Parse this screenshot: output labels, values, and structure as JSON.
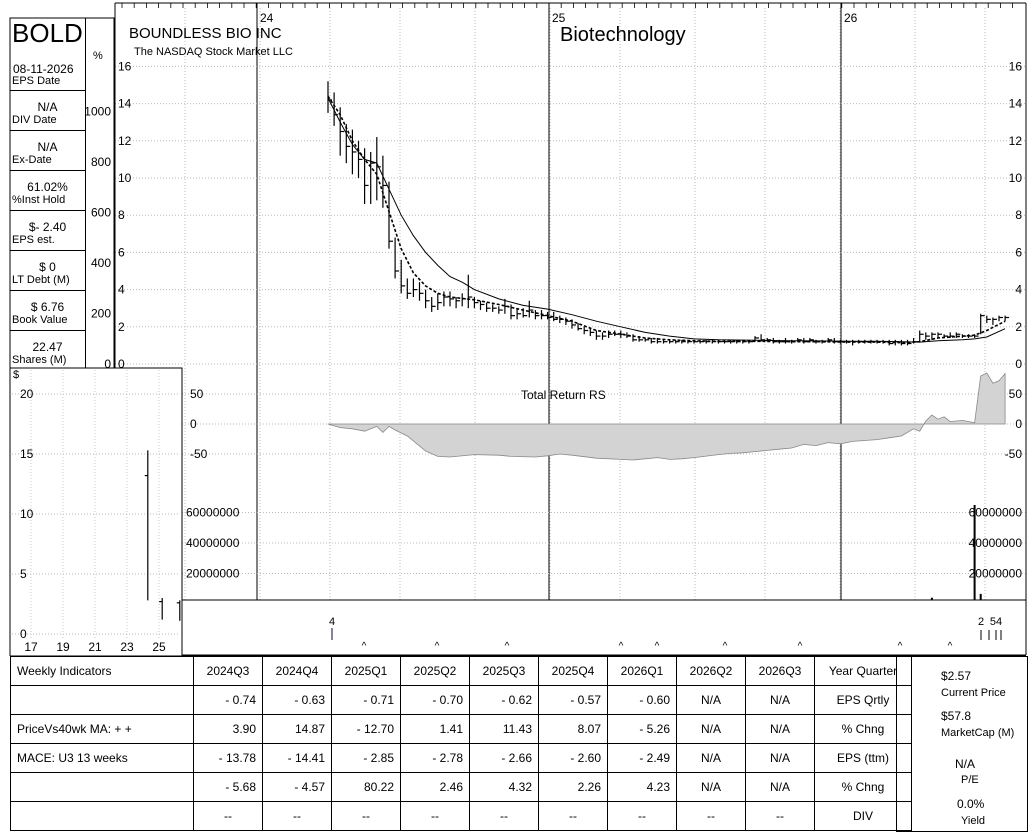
{
  "header": {
    "ticker": "BOLD",
    "company": "BOUNDLESS BIO INC",
    "exchange": "The NASDAQ Stock Market LLC",
    "industry": "Biotechnology",
    "pct_label": "%",
    "dollar_label": "$"
  },
  "sidebar": [
    {
      "value": "08-11-2026",
      "label": "EPS Date"
    },
    {
      "value": "N/A",
      "label": "DIV Date"
    },
    {
      "value": "N/A",
      "label": "Ex-Date"
    },
    {
      "value": "61.02%",
      "label": "%Inst Hold"
    },
    {
      "value": "$- 2.40",
      "label": "EPS est."
    },
    {
      "value": "$ 0",
      "label": "LT Debt (M)"
    },
    {
      "value": "$ 6.76",
      "label": "Book Value"
    },
    {
      "value": "22.47",
      "label": "Shares (M)"
    }
  ],
  "chart_data": [
    {
      "type": "line",
      "name": "weekly price",
      "x_labels": [
        "24",
        "25",
        "26"
      ],
      "y_ticks": [
        0,
        2,
        4,
        6,
        8,
        10,
        12,
        14,
        16
      ],
      "pct_ticks": [
        0,
        200,
        400,
        600,
        800,
        1000
      ],
      "ylim": [
        0,
        16
      ],
      "bars": [
        [
          0,
          15.2,
          13.5,
          14.2
        ],
        [
          1,
          14.6,
          12.8,
          13.4
        ],
        [
          2,
          13.8,
          11.2,
          12.5
        ],
        [
          3,
          12.9,
          10.8,
          11.7
        ],
        [
          4,
          12.6,
          10.2,
          11.4
        ],
        [
          5,
          12.0,
          10.0,
          11.0
        ],
        [
          6,
          11.6,
          8.6,
          9.6
        ],
        [
          7,
          11.4,
          8.6,
          10.8
        ],
        [
          8,
          12.2,
          8.8,
          10.6
        ],
        [
          9,
          11.2,
          8.4,
          9.6
        ],
        [
          10,
          9.8,
          6.2,
          6.6
        ],
        [
          11,
          6.8,
          4.6,
          5.0
        ],
        [
          12,
          5.6,
          3.8,
          4.2
        ],
        [
          13,
          4.6,
          3.5,
          3.8
        ],
        [
          14,
          4.6,
          3.6,
          4.0
        ],
        [
          15,
          4.4,
          3.4,
          3.8
        ],
        [
          16,
          4.0,
          3.0,
          3.4
        ],
        [
          17,
          3.6,
          2.8,
          3.1
        ],
        [
          18,
          3.8,
          2.9,
          3.3
        ],
        [
          19,
          3.9,
          3.1,
          3.6
        ],
        [
          20,
          3.9,
          3.1,
          3.5
        ],
        [
          21,
          3.6,
          3.0,
          3.4
        ],
        [
          22,
          3.8,
          3.1,
          3.5
        ],
        [
          23,
          4.8,
          3.0,
          3.6
        ],
        [
          24,
          3.6,
          3.0,
          3.3
        ],
        [
          25,
          3.4,
          2.9,
          3.2
        ],
        [
          26,
          3.3,
          2.8,
          3.0
        ],
        [
          27,
          3.2,
          2.8,
          3.0
        ],
        [
          28,
          3.1,
          2.7,
          2.9
        ],
        [
          29,
          3.5,
          2.7,
          3.1
        ],
        [
          30,
          3.2,
          2.4,
          2.6
        ],
        [
          31,
          3.0,
          2.4,
          2.7
        ],
        [
          32,
          3.0,
          2.5,
          2.6
        ],
        [
          33,
          3.4,
          2.5,
          2.9
        ],
        [
          34,
          2.9,
          2.4,
          2.6
        ],
        [
          35,
          2.9,
          2.4,
          2.6
        ],
        [
          36,
          2.8,
          2.4,
          2.5
        ],
        [
          37,
          2.8,
          2.3,
          2.4
        ],
        [
          38,
          2.6,
          2.2,
          2.4
        ],
        [
          39,
          2.5,
          2.1,
          2.3
        ],
        [
          40,
          2.4,
          1.9,
          2.1
        ],
        [
          41,
          2.2,
          1.8,
          1.9
        ],
        [
          42,
          2.0,
          1.6,
          1.8
        ],
        [
          43,
          1.9,
          1.5,
          1.7
        ],
        [
          44,
          1.8,
          1.3,
          1.5
        ],
        [
          45,
          1.7,
          1.3,
          1.5
        ],
        [
          46,
          1.8,
          1.4,
          1.6
        ],
        [
          47,
          1.8,
          1.5,
          1.6
        ],
        [
          48,
          1.8,
          1.4,
          1.6
        ],
        [
          49,
          1.7,
          1.4,
          1.5
        ],
        [
          50,
          1.6,
          1.2,
          1.3
        ],
        [
          51,
          1.5,
          1.2,
          1.3
        ],
        [
          52,
          1.4,
          1.2,
          1.3
        ],
        [
          53,
          1.4,
          1.1,
          1.2
        ],
        [
          54,
          1.4,
          1.1,
          1.2
        ],
        [
          55,
          1.3,
          1.1,
          1.2
        ],
        [
          56,
          1.3,
          1.1,
          1.2
        ],
        [
          57,
          1.3,
          1.1,
          1.2
        ],
        [
          58,
          1.3,
          1.1,
          1.2
        ],
        [
          59,
          1.3,
          1.1,
          1.2
        ],
        [
          60,
          1.3,
          1.1,
          1.2
        ],
        [
          61,
          1.3,
          1.1,
          1.2
        ],
        [
          62,
          1.3,
          1.1,
          1.2
        ],
        [
          63,
          1.3,
          1.1,
          1.2
        ],
        [
          64,
          1.3,
          1.1,
          1.2
        ],
        [
          65,
          1.3,
          1.1,
          1.2
        ],
        [
          66,
          1.3,
          1.1,
          1.2
        ],
        [
          67,
          1.3,
          1.1,
          1.2
        ],
        [
          68,
          1.3,
          1.1,
          1.2
        ],
        [
          69,
          1.3,
          1.1,
          1.2
        ],
        [
          70,
          1.5,
          1.2,
          1.4
        ],
        [
          71,
          1.6,
          1.2,
          1.3
        ],
        [
          72,
          1.4,
          1.2,
          1.3
        ],
        [
          73,
          1.4,
          1.1,
          1.2
        ],
        [
          74,
          1.3,
          1.1,
          1.2
        ],
        [
          75,
          1.4,
          1.1,
          1.2
        ],
        [
          76,
          1.3,
          1.1,
          1.2
        ],
        [
          77,
          1.4,
          1.2,
          1.3
        ],
        [
          78,
          1.4,
          1.1,
          1.2
        ],
        [
          79,
          1.4,
          1.2,
          1.3
        ],
        [
          80,
          1.3,
          1.1,
          1.2
        ],
        [
          81,
          1.3,
          1.1,
          1.2
        ],
        [
          82,
          1.4,
          1.2,
          1.3
        ],
        [
          83,
          1.4,
          1.1,
          1.2
        ],
        [
          84,
          1.3,
          1.1,
          1.2
        ],
        [
          85,
          1.3,
          1.1,
          1.2
        ],
        [
          86,
          1.3,
          1.0,
          1.2
        ],
        [
          87,
          1.3,
          1.1,
          1.2
        ],
        [
          88,
          1.3,
          1.1,
          1.2
        ],
        [
          89,
          1.3,
          1.1,
          1.2
        ],
        [
          90,
          1.3,
          1.1,
          1.2
        ],
        [
          91,
          1.3,
          1.1,
          1.2
        ],
        [
          92,
          1.3,
          1.0,
          1.1
        ],
        [
          93,
          1.3,
          1.0,
          1.2
        ],
        [
          94,
          1.3,
          1.0,
          1.1
        ],
        [
          95,
          1.3,
          1.0,
          1.1
        ],
        [
          96,
          1.4,
          1.1,
          1.2
        ],
        [
          97,
          1.8,
          1.2,
          1.6
        ],
        [
          98,
          1.7,
          1.3,
          1.5
        ],
        [
          99,
          1.7,
          1.3,
          1.6
        ],
        [
          100,
          1.7,
          1.4,
          1.6
        ],
        [
          101,
          1.6,
          1.4,
          1.5
        ],
        [
          102,
          1.7,
          1.4,
          1.5
        ],
        [
          103,
          1.7,
          1.4,
          1.6
        ],
        [
          104,
          1.6,
          1.4,
          1.5
        ],
        [
          105,
          1.6,
          1.4,
          1.5
        ],
        [
          106,
          1.6,
          1.4,
          1.5
        ],
        [
          107,
          2.7,
          1.6,
          2.6
        ],
        [
          108,
          2.6,
          2.2,
          2.4
        ],
        [
          109,
          2.5,
          2.1,
          2.4
        ],
        [
          110,
          2.6,
          2.3,
          2.5
        ],
        [
          111,
          2.6,
          2.3,
          2.5
        ]
      ],
      "ma_fast": [
        [
          0,
          14.4
        ],
        [
          2,
          13.4
        ],
        [
          4,
          12.0
        ],
        [
          6,
          11.0
        ],
        [
          8,
          10.2
        ],
        [
          10,
          8.2
        ],
        [
          12,
          6.2
        ],
        [
          14,
          4.9
        ],
        [
          16,
          4.2
        ],
        [
          18,
          3.8
        ],
        [
          20,
          3.6
        ],
        [
          24,
          3.45
        ],
        [
          28,
          3.2
        ],
        [
          32,
          2.9
        ],
        [
          36,
          2.6
        ],
        [
          40,
          2.3
        ],
        [
          44,
          1.8
        ],
        [
          48,
          1.6
        ],
        [
          52,
          1.4
        ],
        [
          56,
          1.3
        ],
        [
          60,
          1.25
        ],
        [
          64,
          1.22
        ],
        [
          70,
          1.22
        ],
        [
          76,
          1.2
        ],
        [
          80,
          1.2
        ],
        [
          86,
          1.18
        ],
        [
          90,
          1.18
        ],
        [
          94,
          1.15
        ],
        [
          97,
          1.2
        ],
        [
          100,
          1.4
        ],
        [
          104,
          1.5
        ],
        [
          106,
          1.55
        ],
        [
          108,
          1.8
        ],
        [
          111,
          2.3
        ]
      ],
      "ma_slow": [
        [
          0,
          14.3
        ],
        [
          2,
          13.0
        ],
        [
          4,
          11.8
        ],
        [
          6,
          11.0
        ],
        [
          8,
          10.8
        ],
        [
          10,
          9.4
        ],
        [
          12,
          8.0
        ],
        [
          14,
          6.9
        ],
        [
          16,
          6.0
        ],
        [
          18,
          5.3
        ],
        [
          20,
          4.7
        ],
        [
          22,
          4.4
        ],
        [
          24,
          4.0
        ],
        [
          28,
          3.5
        ],
        [
          32,
          3.15
        ],
        [
          36,
          2.95
        ],
        [
          40,
          2.65
        ],
        [
          44,
          2.3
        ],
        [
          48,
          2.0
        ],
        [
          52,
          1.7
        ],
        [
          56,
          1.5
        ],
        [
          60,
          1.35
        ],
        [
          64,
          1.3
        ],
        [
          70,
          1.28
        ],
        [
          76,
          1.25
        ],
        [
          80,
          1.24
        ],
        [
          86,
          1.22
        ],
        [
          90,
          1.22
        ],
        [
          94,
          1.2
        ],
        [
          97,
          1.18
        ],
        [
          100,
          1.25
        ],
        [
          104,
          1.3
        ],
        [
          106,
          1.35
        ],
        [
          108,
          1.45
        ],
        [
          111,
          1.9
        ]
      ]
    },
    {
      "type": "area",
      "name": "Total Return RS",
      "y_ticks": [
        50,
        0,
        -50
      ],
      "values": [
        [
          0,
          0
        ],
        [
          2,
          -6
        ],
        [
          4,
          -8
        ],
        [
          6,
          -12
        ],
        [
          8,
          -4
        ],
        [
          9,
          -14
        ],
        [
          10,
          -4
        ],
        [
          11,
          -10
        ],
        [
          13,
          -20
        ],
        [
          16,
          -45
        ],
        [
          18,
          -54
        ],
        [
          20,
          -55
        ],
        [
          24,
          -51
        ],
        [
          28,
          -52
        ],
        [
          30,
          -54
        ],
        [
          34,
          -55
        ],
        [
          36,
          -53
        ],
        [
          38,
          -50
        ],
        [
          40,
          -52
        ],
        [
          44,
          -57
        ],
        [
          48,
          -59
        ],
        [
          50,
          -60
        ],
        [
          52,
          -58
        ],
        [
          54,
          -56
        ],
        [
          56,
          -59
        ],
        [
          58,
          -58
        ],
        [
          60,
          -56
        ],
        [
          64,
          -51
        ],
        [
          66,
          -49
        ],
        [
          68,
          -48
        ],
        [
          70,
          -46
        ],
        [
          72,
          -44
        ],
        [
          74,
          -42
        ],
        [
          76,
          -40
        ],
        [
          78,
          -34
        ],
        [
          80,
          -36
        ],
        [
          82,
          -31
        ],
        [
          84,
          -33
        ],
        [
          86,
          -29
        ],
        [
          90,
          -26
        ],
        [
          94,
          -20
        ],
        [
          96,
          -8
        ],
        [
          97,
          -12
        ],
        [
          98,
          5
        ],
        [
          99,
          15
        ],
        [
          100,
          8
        ],
        [
          101,
          12
        ],
        [
          102,
          4
        ],
        [
          104,
          6
        ],
        [
          106,
          2
        ],
        [
          107,
          80
        ],
        [
          108,
          85
        ],
        [
          109,
          68
        ],
        [
          110,
          72
        ],
        [
          111,
          84
        ]
      ]
    },
    {
      "type": "bar",
      "name": "volume",
      "y_ticks": [
        60000000,
        40000000,
        20000000
      ],
      "values": [
        [
          99,
          1500000
        ],
        [
          106,
          64000000
        ],
        [
          107,
          4000000
        ]
      ]
    },
    {
      "type": "line",
      "name": "price history",
      "y_label": "$",
      "x_labels": [
        "17",
        "19",
        "21",
        "23",
        "25"
      ],
      "y_ticks": [
        0,
        5,
        10,
        15,
        20
      ],
      "ylim": [
        0,
        22
      ],
      "bars": [
        [
          24.3,
          15.3,
          2.8,
          13.2
        ],
        [
          25.2,
          3.0,
          1.2,
          2.7
        ],
        [
          26.3,
          2.8,
          1.1,
          2.6
        ]
      ]
    }
  ],
  "events": {
    "split_markers": [
      "4"
    ],
    "bottom_numbers": [
      "2",
      "54"
    ]
  },
  "table": {
    "headers": [
      "Weekly Indicators",
      "2024Q3",
      "2024Q4",
      "2025Q1",
      "2025Q2",
      "2025Q3",
      "2025Q4",
      "2026Q1",
      "2026Q2",
      "2026Q3",
      "Year Quarter"
    ],
    "rows": [
      {
        "label": "",
        "cells": [
          "- 0.74",
          "- 0.63",
          "- 0.71",
          "- 0.70",
          "- 0.62",
          "- 0.57",
          "- 0.60",
          "N/A",
          "N/A"
        ],
        "metric": "EPS Qrtly"
      },
      {
        "label": "PriceVs40wk MA:  + +",
        "cells": [
          "3.90",
          "14.87",
          "- 12.70",
          "1.41",
          "11.43",
          "8.07",
          "- 5.26",
          "N/A",
          "N/A"
        ],
        "metric": "% Chng"
      },
      {
        "label": "MACE: U3  13 weeks",
        "cells": [
          "- 13.78",
          "- 14.41",
          "- 2.85",
          "- 2.78",
          "- 2.66",
          "- 2.60",
          "- 2.49",
          "N/A",
          "N/A"
        ],
        "metric": "EPS (ttm)"
      },
      {
        "label": "",
        "cells": [
          "- 5.68",
          "- 4.57",
          "80.22",
          "2.46",
          "4.32",
          "2.26",
          "4.23",
          "N/A",
          "N/A"
        ],
        "metric": "% Chng"
      },
      {
        "label": "",
        "cells": [
          "--",
          "--",
          "--",
          "--",
          "--",
          "--",
          "--",
          "--",
          "--"
        ],
        "metric": "DIV"
      }
    ]
  },
  "summary": {
    "price": "$2.57",
    "price_label": "Current Price",
    "mcap": "$57.8",
    "mcap_label": "MarketCap (M)",
    "pe": "N/A",
    "pe_label": "P/E",
    "yield": "0.0%",
    "yield_label": "Yield"
  }
}
